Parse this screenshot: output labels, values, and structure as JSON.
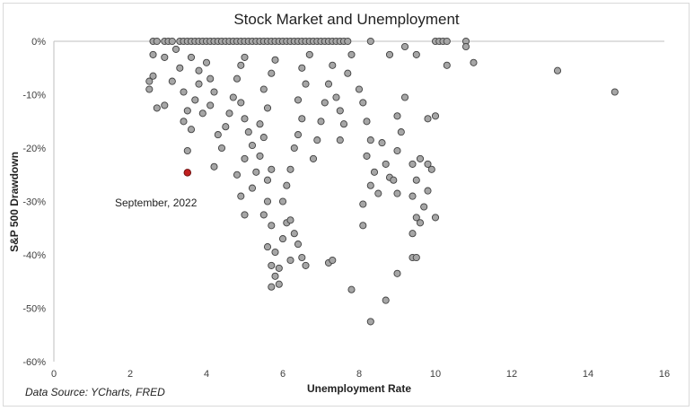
{
  "chart_data": {
    "type": "scatter",
    "title": "Stock Market and Unemployment",
    "xlabel": "Unemployment Rate",
    "ylabel": "S&P 500 Drawdown",
    "xlim": [
      0,
      16
    ],
    "ylim": [
      -60,
      0
    ],
    "x_ticks": [
      "0",
      "2",
      "4",
      "6",
      "8",
      "10",
      "12",
      "14",
      "16"
    ],
    "y_ticks": [
      "0%",
      "-10%",
      "-20%",
      "-30%",
      "-40%",
      "-50%",
      "-60%"
    ],
    "grid": false,
    "source_note": "Data Source: YCharts, FRED",
    "highlight": {
      "label": "September, 2022",
      "x": 3.5,
      "y": -24.6,
      "color": "#c0201f"
    },
    "marker_fill": "#a6a6a6",
    "marker_stroke": "#404040",
    "series": [
      {
        "points": [
          [
            2.6,
            0
          ],
          [
            2.7,
            0
          ],
          [
            2.9,
            0
          ],
          [
            3.0,
            0
          ],
          [
            3.1,
            0
          ],
          [
            3.3,
            0
          ],
          [
            3.4,
            0
          ],
          [
            3.5,
            0
          ],
          [
            3.6,
            0
          ],
          [
            3.7,
            0
          ],
          [
            3.8,
            0
          ],
          [
            3.9,
            0
          ],
          [
            4.0,
            0
          ],
          [
            4.1,
            0
          ],
          [
            4.2,
            0
          ],
          [
            4.3,
            0
          ],
          [
            4.4,
            0
          ],
          [
            4.5,
            0
          ],
          [
            4.6,
            0
          ],
          [
            4.7,
            0
          ],
          [
            4.8,
            0
          ],
          [
            4.9,
            0
          ],
          [
            5.0,
            0
          ],
          [
            5.1,
            0
          ],
          [
            5.2,
            0
          ],
          [
            5.3,
            0
          ],
          [
            5.4,
            0
          ],
          [
            5.5,
            0
          ],
          [
            5.6,
            0
          ],
          [
            5.7,
            0
          ],
          [
            5.8,
            0
          ],
          [
            5.9,
            0
          ],
          [
            6.0,
            0
          ],
          [
            6.1,
            0
          ],
          [
            6.2,
            0
          ],
          [
            6.3,
            0
          ],
          [
            6.4,
            0
          ],
          [
            6.5,
            0
          ],
          [
            6.6,
            0
          ],
          [
            6.7,
            0
          ],
          [
            6.8,
            0
          ],
          [
            6.9,
            0
          ],
          [
            7.0,
            0
          ],
          [
            7.1,
            0
          ],
          [
            7.2,
            0
          ],
          [
            7.3,
            0
          ],
          [
            7.4,
            0
          ],
          [
            7.5,
            0
          ],
          [
            7.6,
            0
          ],
          [
            7.7,
            0
          ],
          [
            8.3,
            0
          ],
          [
            10.0,
            0
          ],
          [
            10.1,
            0
          ],
          [
            10.2,
            0
          ],
          [
            10.3,
            0
          ],
          [
            10.8,
            0
          ],
          [
            2.6,
            -2.5
          ],
          [
            2.9,
            -3.0
          ],
          [
            3.2,
            -1.5
          ],
          [
            2.5,
            -7.5
          ],
          [
            2.6,
            -6.5
          ],
          [
            2.5,
            -9.0
          ],
          [
            2.7,
            -12.5
          ],
          [
            2.9,
            -12.0
          ],
          [
            3.1,
            -7.5
          ],
          [
            3.3,
            -5.0
          ],
          [
            3.4,
            -9.5
          ],
          [
            3.5,
            -13.0
          ],
          [
            3.4,
            -15.0
          ],
          [
            3.6,
            -16.5
          ],
          [
            3.5,
            -20.5
          ],
          [
            3.7,
            -11.0
          ],
          [
            3.8,
            -8.0
          ],
          [
            3.9,
            -13.5
          ],
          [
            3.6,
            -3.0
          ],
          [
            3.8,
            -5.5
          ],
          [
            4.0,
            -4.0
          ],
          [
            4.1,
            -7.0
          ],
          [
            4.2,
            -9.5
          ],
          [
            4.1,
            -12.0
          ],
          [
            4.3,
            -17.5
          ],
          [
            4.4,
            -20.0
          ],
          [
            4.2,
            -23.5
          ],
          [
            4.5,
            -16.0
          ],
          [
            4.6,
            -13.5
          ],
          [
            4.7,
            -10.5
          ],
          [
            4.8,
            -7.0
          ],
          [
            4.9,
            -4.5
          ],
          [
            5.0,
            -3.0
          ],
          [
            4.9,
            -11.5
          ],
          [
            5.0,
            -14.5
          ],
          [
            5.1,
            -17.0
          ],
          [
            5.2,
            -19.5
          ],
          [
            5.0,
            -22.0
          ],
          [
            4.8,
            -25.0
          ],
          [
            4.9,
            -29.0
          ],
          [
            5.0,
            -32.5
          ],
          [
            5.2,
            -27.5
          ],
          [
            5.3,
            -24.5
          ],
          [
            5.4,
            -21.5
          ],
          [
            5.5,
            -18.0
          ],
          [
            5.4,
            -15.5
          ],
          [
            5.6,
            -12.5
          ],
          [
            5.5,
            -9.0
          ],
          [
            5.7,
            -6.0
          ],
          [
            5.8,
            -3.5
          ],
          [
            5.6,
            -26.0
          ],
          [
            5.7,
            -24.0
          ],
          [
            5.6,
            -30.0
          ],
          [
            5.5,
            -32.5
          ],
          [
            5.7,
            -34.5
          ],
          [
            5.6,
            -38.5
          ],
          [
            5.8,
            -39.5
          ],
          [
            5.7,
            -42.0
          ],
          [
            5.8,
            -44.0
          ],
          [
            5.7,
            -46.0
          ],
          [
            5.9,
            -45.5
          ],
          [
            5.9,
            -42.5
          ],
          [
            6.0,
            -37.0
          ],
          [
            6.1,
            -34.0
          ],
          [
            6.2,
            -33.5
          ],
          [
            6.0,
            -30.0
          ],
          [
            6.1,
            -27.0
          ],
          [
            6.2,
            -24.0
          ],
          [
            6.3,
            -20.0
          ],
          [
            6.4,
            -17.5
          ],
          [
            6.5,
            -14.5
          ],
          [
            6.4,
            -11.0
          ],
          [
            6.6,
            -8.0
          ],
          [
            6.5,
            -5.0
          ],
          [
            6.7,
            -2.5
          ],
          [
            6.3,
            -36.0
          ],
          [
            6.4,
            -38.0
          ],
          [
            6.5,
            -40.5
          ],
          [
            6.6,
            -42.0
          ],
          [
            6.2,
            -41.0
          ],
          [
            6.8,
            -22.0
          ],
          [
            6.9,
            -18.5
          ],
          [
            7.0,
            -15.0
          ],
          [
            7.1,
            -11.5
          ],
          [
            7.2,
            -8.0
          ],
          [
            7.3,
            -4.5
          ],
          [
            7.4,
            -10.5
          ],
          [
            7.5,
            -13.0
          ],
          [
            7.6,
            -15.5
          ],
          [
            7.5,
            -18.5
          ],
          [
            7.7,
            -6.0
          ],
          [
            7.8,
            -2.5
          ],
          [
            7.2,
            -41.5
          ],
          [
            7.3,
            -41.0
          ],
          [
            7.8,
            -46.5
          ],
          [
            8.0,
            -9.0
          ],
          [
            8.1,
            -11.5
          ],
          [
            8.2,
            -15.0
          ],
          [
            8.3,
            -18.5
          ],
          [
            8.2,
            -21.5
          ],
          [
            8.4,
            -24.5
          ],
          [
            8.5,
            -28.5
          ],
          [
            8.3,
            -27.0
          ],
          [
            8.6,
            -19.0
          ],
          [
            8.7,
            -23.0
          ],
          [
            8.8,
            -25.5
          ],
          [
            8.9,
            -26.0
          ],
          [
            9.0,
            -20.5
          ],
          [
            9.1,
            -17.0
          ],
          [
            9.0,
            -14.0
          ],
          [
            9.2,
            -10.5
          ],
          [
            9.0,
            -28.5
          ],
          [
            9.4,
            -23.0
          ],
          [
            9.5,
            -26.0
          ],
          [
            9.4,
            -29.0
          ],
          [
            9.5,
            -33.0
          ],
          [
            9.6,
            -34.0
          ],
          [
            9.4,
            -36.0
          ],
          [
            9.4,
            -40.5
          ],
          [
            9.5,
            -40.5
          ],
          [
            9.0,
            -43.5
          ],
          [
            8.7,
            -48.5
          ],
          [
            8.3,
            -52.5
          ],
          [
            8.1,
            -34.5
          ],
          [
            8.1,
            -30.5
          ],
          [
            9.8,
            -23.0
          ],
          [
            9.9,
            -24.0
          ],
          [
            9.8,
            -28.0
          ],
          [
            10.0,
            -33.0
          ],
          [
            9.7,
            -31.0
          ],
          [
            9.6,
            -22.0
          ],
          [
            9.8,
            -14.5
          ],
          [
            10.0,
            -14.0
          ],
          [
            10.3,
            -4.5
          ],
          [
            11.0,
            -4.0
          ],
          [
            10.8,
            -1.0
          ],
          [
            9.5,
            -2.5
          ],
          [
            9.2,
            -1.0
          ],
          [
            8.8,
            -2.5
          ],
          [
            13.2,
            -5.5
          ],
          [
            14.7,
            -9.5
          ]
        ]
      }
    ]
  }
}
